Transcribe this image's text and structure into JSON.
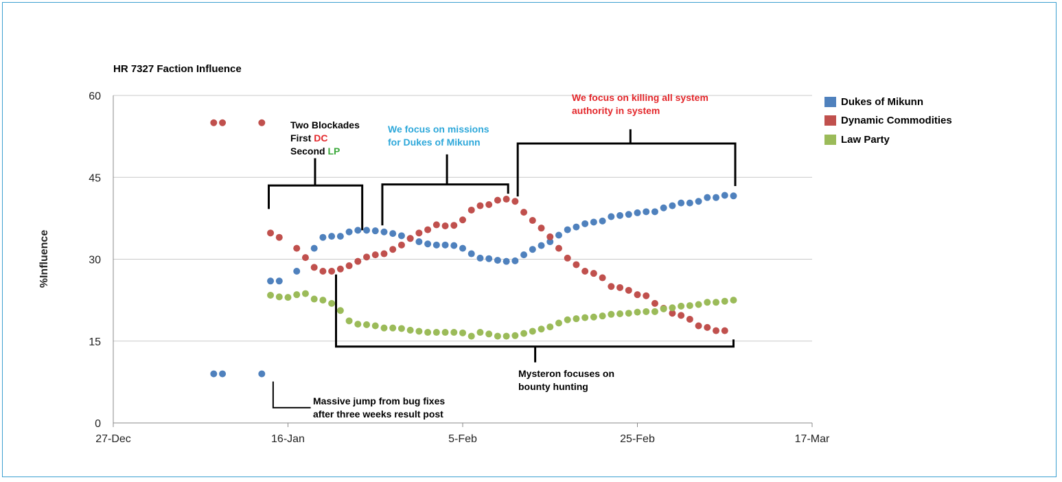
{
  "chart_data": {
    "type": "scatter",
    "title": "HR 7327 Faction Influence",
    "ylabel": "%Influence",
    "xlabel": "",
    "ylim": [
      0,
      60
    ],
    "y_ticks": [
      "0",
      "15",
      "30",
      "45",
      "60"
    ],
    "x_ticks": [
      "27-Dec",
      "16-Jan",
      "5-Feb",
      "25-Feb",
      "17-Mar"
    ],
    "grid": true,
    "legend_position": "right",
    "x_day_ticks": [
      0,
      20,
      40,
      60,
      80
    ],
    "series": [
      {
        "name": "Dukes of Mikunn",
        "color": "#4f81bd",
        "points": [
          [
            11.5,
            9
          ],
          [
            12.5,
            9
          ],
          [
            17,
            9
          ],
          [
            18,
            26
          ],
          [
            19,
            26
          ],
          [
            21,
            27.8
          ],
          [
            23,
            32
          ],
          [
            24,
            34
          ],
          [
            25,
            34.2
          ],
          [
            26,
            34.2
          ],
          [
            27,
            35
          ],
          [
            28,
            35.3
          ],
          [
            29,
            35.3
          ],
          [
            30,
            35.2
          ],
          [
            31,
            35
          ],
          [
            32,
            34.7
          ],
          [
            33,
            34.3
          ],
          [
            34,
            33.8
          ],
          [
            35,
            33.2
          ],
          [
            36,
            32.8
          ],
          [
            37,
            32.6
          ],
          [
            38,
            32.6
          ],
          [
            39,
            32.5
          ],
          [
            40,
            32
          ],
          [
            41,
            31
          ],
          [
            42,
            30.2
          ],
          [
            43,
            30.1
          ],
          [
            44,
            29.8
          ],
          [
            45,
            29.6
          ],
          [
            46,
            29.7
          ],
          [
            47,
            30.8
          ],
          [
            48,
            31.8
          ],
          [
            49,
            32.5
          ],
          [
            50,
            33.2
          ],
          [
            51,
            34.4
          ],
          [
            52,
            35.4
          ],
          [
            53,
            35.9
          ],
          [
            54,
            36.5
          ],
          [
            55,
            36.8
          ],
          [
            56,
            37
          ],
          [
            57,
            37.8
          ],
          [
            58,
            38
          ],
          [
            59,
            38.2
          ],
          [
            60,
            38.5
          ],
          [
            61,
            38.7
          ],
          [
            62,
            38.7
          ],
          [
            63,
            39.4
          ],
          [
            64,
            39.8
          ],
          [
            65,
            40.3
          ],
          [
            66,
            40.3
          ],
          [
            67,
            40.6
          ],
          [
            68,
            41.3
          ],
          [
            69,
            41.3
          ],
          [
            70,
            41.7
          ],
          [
            71,
            41.6
          ]
        ]
      },
      {
        "name": "Dynamic Commodities",
        "color": "#c0504d",
        "points": [
          [
            11.5,
            55
          ],
          [
            12.5,
            55
          ],
          [
            17,
            55
          ],
          [
            18,
            34.8
          ],
          [
            19,
            34
          ],
          [
            21,
            32
          ],
          [
            22,
            30.3
          ],
          [
            23,
            28.5
          ],
          [
            24,
            27.8
          ],
          [
            25,
            27.8
          ],
          [
            26,
            28.2
          ],
          [
            27,
            28.8
          ],
          [
            28,
            29.6
          ],
          [
            29,
            30.4
          ],
          [
            30,
            30.8
          ],
          [
            31,
            31
          ],
          [
            32,
            31.8
          ],
          [
            33,
            32.6
          ],
          [
            34,
            33.8
          ],
          [
            35,
            34.8
          ],
          [
            36,
            35.4
          ],
          [
            37,
            36.3
          ],
          [
            38,
            36.1
          ],
          [
            39,
            36.2
          ],
          [
            40,
            37.2
          ],
          [
            41,
            39
          ],
          [
            42,
            39.8
          ],
          [
            43,
            40
          ],
          [
            44,
            40.8
          ],
          [
            45,
            41
          ],
          [
            46,
            40.6
          ],
          [
            47,
            38.6
          ],
          [
            48,
            37.1
          ],
          [
            49,
            35.7
          ],
          [
            50,
            34.1
          ],
          [
            51,
            32
          ],
          [
            52,
            30.2
          ],
          [
            53,
            29
          ],
          [
            54,
            27.8
          ],
          [
            55,
            27.4
          ],
          [
            56,
            26.6
          ],
          [
            57,
            25
          ],
          [
            58,
            24.8
          ],
          [
            59,
            24.3
          ],
          [
            60,
            23.5
          ],
          [
            61,
            23.3
          ],
          [
            62,
            21.9
          ],
          [
            63,
            21
          ],
          [
            64,
            20.1
          ],
          [
            65,
            19.7
          ],
          [
            66,
            19
          ],
          [
            67,
            17.8
          ],
          [
            68,
            17.5
          ],
          [
            69,
            16.9
          ],
          [
            70,
            16.9
          ]
        ]
      },
      {
        "name": "Law Party",
        "color": "#9bbb59",
        "points": [
          [
            18,
            23.4
          ],
          [
            19,
            23.1
          ],
          [
            20,
            23
          ],
          [
            21,
            23.5
          ],
          [
            22,
            23.7
          ],
          [
            23,
            22.7
          ],
          [
            24,
            22.5
          ],
          [
            25,
            21.9
          ],
          [
            26,
            20.6
          ],
          [
            27,
            18.7
          ],
          [
            28,
            18.1
          ],
          [
            29,
            18
          ],
          [
            30,
            17.8
          ],
          [
            31,
            17.4
          ],
          [
            32,
            17.4
          ],
          [
            33,
            17.3
          ],
          [
            34,
            17
          ],
          [
            35,
            16.8
          ],
          [
            36,
            16.6
          ],
          [
            37,
            16.6
          ],
          [
            38,
            16.6
          ],
          [
            39,
            16.6
          ],
          [
            40,
            16.5
          ],
          [
            41,
            15.9
          ],
          [
            42,
            16.6
          ],
          [
            43,
            16.3
          ],
          [
            44,
            15.9
          ],
          [
            45,
            15.9
          ],
          [
            46,
            16
          ],
          [
            47,
            16.4
          ],
          [
            48,
            16.8
          ],
          [
            49,
            17.2
          ],
          [
            50,
            17.6
          ],
          [
            51,
            18.3
          ],
          [
            52,
            18.9
          ],
          [
            53,
            19.1
          ],
          [
            54,
            19.3
          ],
          [
            55,
            19.4
          ],
          [
            56,
            19.6
          ],
          [
            57,
            19.9
          ],
          [
            58,
            20
          ],
          [
            59,
            20.1
          ],
          [
            60,
            20.3
          ],
          [
            61,
            20.4
          ],
          [
            62,
            20.4
          ],
          [
            63,
            20.9
          ],
          [
            64,
            21.1
          ],
          [
            65,
            21.4
          ],
          [
            66,
            21.5
          ],
          [
            67,
            21.7
          ],
          [
            68,
            22.1
          ],
          [
            69,
            22.1
          ],
          [
            70,
            22.3
          ],
          [
            71,
            22.5
          ]
        ]
      }
    ],
    "annotations": [
      {
        "lines": [
          "Two Blockades"
        ]
      },
      {
        "prefix": "First ",
        "highlight": "DC",
        "highlight_color": "#e3262a"
      },
      {
        "prefix": "Second ",
        "highlight": "LP",
        "highlight_color": "#3aa83a"
      },
      {
        "lines": [
          "We focus on missions",
          "for Dukes of Mikunn"
        ],
        "color": "#2ea8da"
      },
      {
        "lines": [
          "We focus on killing all system",
          "authority in system"
        ],
        "color": "#e3262a"
      },
      {
        "lines": [
          "Mysteron focuses on",
          "bounty hunting"
        ]
      },
      {
        "lines": [
          "Massive jump from bug fixes",
          "after three weeks result post"
        ]
      }
    ]
  }
}
